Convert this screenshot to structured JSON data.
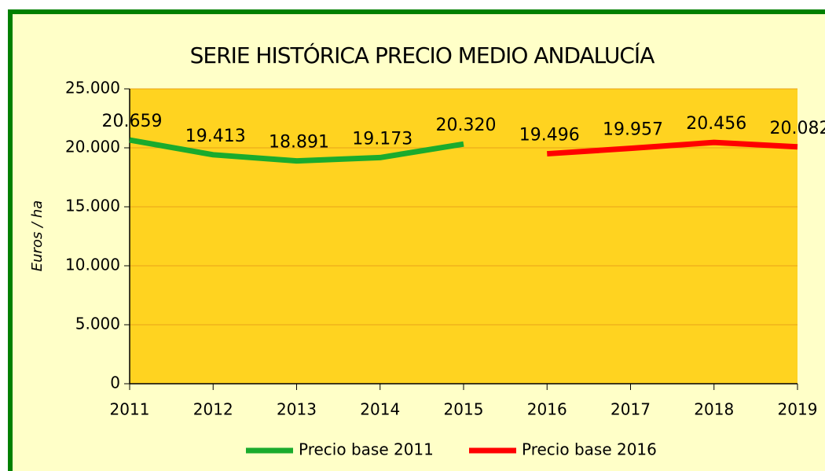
{
  "chart_data": {
    "type": "line",
    "title": "SERIE HISTÓRICA PRECIO MEDIO ANDALUCÍA",
    "y_label": "Euros / ha",
    "categories": [
      "2011",
      "2012",
      "2013",
      "2014",
      "2015",
      "2016",
      "2017",
      "2018",
      "2019"
    ],
    "series": [
      {
        "name": "Precio base 2011",
        "color": "#1aab2d",
        "values": [
          20659,
          19413,
          18891,
          19173,
          20320,
          null,
          null,
          null,
          null
        ],
        "value_labels": [
          "20.659",
          "19.413",
          "18.891",
          "19.173",
          "20.320",
          null,
          null,
          null,
          null
        ]
      },
      {
        "name": "Precio base 2016",
        "color": "#ff0000",
        "values": [
          null,
          null,
          null,
          null,
          null,
          19496,
          19957,
          20456,
          20082
        ],
        "value_labels": [
          null,
          null,
          null,
          null,
          null,
          "19.496",
          "19.957",
          "20.456",
          "20.082"
        ]
      }
    ],
    "ylim": [
      0,
      25000
    ],
    "yticks": [
      0,
      {
        "value": 5000,
        "label": "5.000"
      },
      {
        "value": 10000,
        "label": "10.000"
      },
      {
        "value": 15000,
        "label": "15.000"
      },
      {
        "value": 20000,
        "label": "20.000"
      },
      {
        "value": 25000,
        "label": "25.000"
      }
    ],
    "grid": true,
    "legend": "bottom"
  }
}
